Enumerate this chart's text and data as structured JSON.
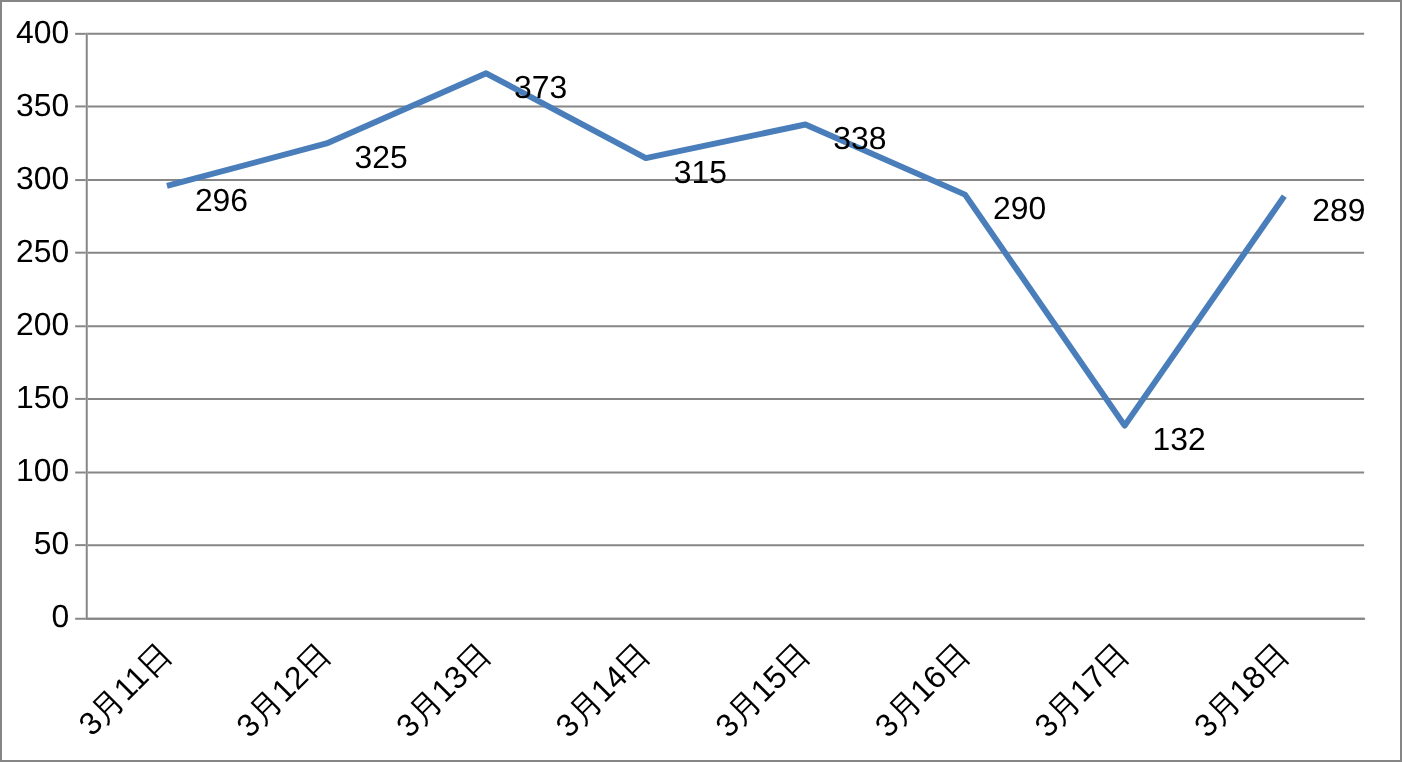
{
  "chart_data": {
    "type": "line",
    "categories": [
      "3月11日",
      "3月12日",
      "3月13日",
      "3月14日",
      "3月15日",
      "3月16日",
      "3月17日",
      "3月18日"
    ],
    "series": [
      {
        "color": "#4a7ebb",
        "values": [
          296,
          325,
          373,
          315,
          338,
          290,
          132,
          289
        ]
      }
    ],
    "ylim": [
      0,
      400
    ],
    "yticks": [
      0,
      50,
      100,
      150,
      200,
      250,
      300,
      350,
      400
    ],
    "grid": "y",
    "legend": false,
    "marker": "none",
    "line_style": "solid",
    "data_labels": true
  }
}
